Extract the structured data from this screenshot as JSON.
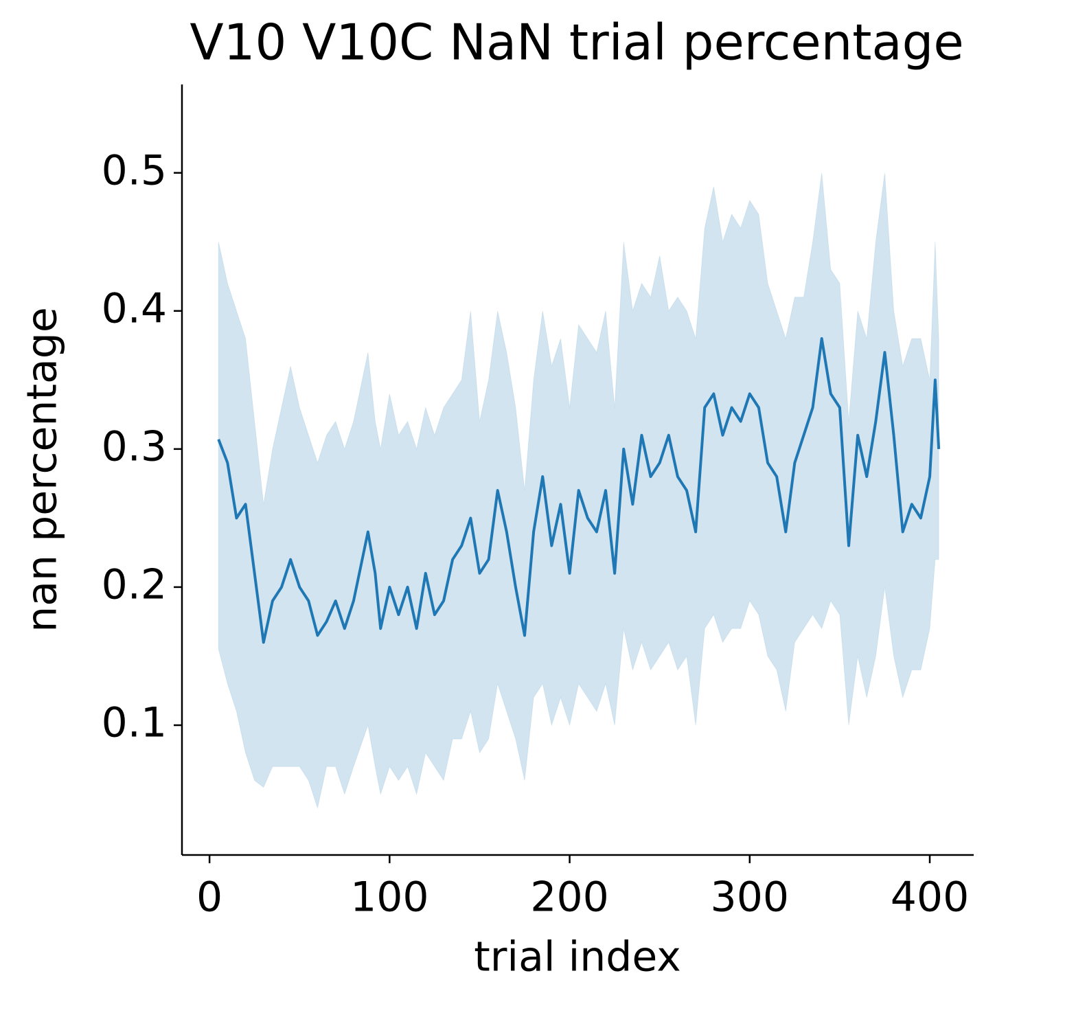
{
  "chart_data": {
    "type": "line",
    "title": "V10 V10C NaN trial percentage",
    "xlabel": "trial index",
    "ylabel": "nan percentage",
    "color": "#1f77b4",
    "xlim": [
      -15.3,
      424.4
    ],
    "ylim": [
      0.006,
      0.564
    ],
    "xticks": [
      0,
      100,
      200,
      300,
      400
    ],
    "yticks": [
      0.1,
      0.2,
      0.3,
      0.4,
      0.5
    ],
    "x": [
      5,
      10,
      15,
      20,
      25,
      30,
      35,
      40,
      45,
      50,
      55,
      60,
      65,
      70,
      75,
      80,
      88,
      92,
      95,
      100,
      105,
      110,
      115,
      120,
      125,
      130,
      135,
      140,
      145,
      150,
      155,
      160,
      165,
      170,
      175,
      180,
      185,
      190,
      195,
      200,
      205,
      210,
      215,
      220,
      225,
      230,
      235,
      240,
      245,
      250,
      255,
      260,
      265,
      270,
      275,
      280,
      285,
      290,
      295,
      300,
      305,
      310,
      315,
      320,
      325,
      330,
      335,
      340,
      345,
      350,
      355,
      360,
      365,
      370,
      375,
      380,
      385,
      390,
      395,
      400,
      403,
      405
    ],
    "values": [
      0.307,
      0.29,
      0.25,
      0.26,
      0.21,
      0.16,
      0.19,
      0.2,
      0.22,
      0.2,
      0.19,
      0.165,
      0.175,
      0.19,
      0.17,
      0.19,
      0.24,
      0.21,
      0.17,
      0.2,
      0.18,
      0.2,
      0.17,
      0.21,
      0.18,
      0.19,
      0.22,
      0.23,
      0.25,
      0.21,
      0.22,
      0.27,
      0.24,
      0.2,
      0.165,
      0.24,
      0.28,
      0.23,
      0.26,
      0.21,
      0.27,
      0.25,
      0.24,
      0.27,
      0.21,
      0.3,
      0.26,
      0.31,
      0.28,
      0.29,
      0.31,
      0.28,
      0.27,
      0.24,
      0.33,
      0.34,
      0.31,
      0.33,
      0.32,
      0.34,
      0.33,
      0.29,
      0.28,
      0.24,
      0.29,
      0.31,
      0.33,
      0.38,
      0.34,
      0.33,
      0.23,
      0.31,
      0.28,
      0.32,
      0.37,
      0.31,
      0.24,
      0.26,
      0.25,
      0.28,
      0.35,
      0.3
    ],
    "ci_upper": [
      0.45,
      0.42,
      0.4,
      0.38,
      0.32,
      0.26,
      0.3,
      0.33,
      0.36,
      0.33,
      0.31,
      0.29,
      0.31,
      0.32,
      0.3,
      0.32,
      0.37,
      0.32,
      0.3,
      0.34,
      0.31,
      0.32,
      0.3,
      0.33,
      0.31,
      0.33,
      0.34,
      0.35,
      0.4,
      0.32,
      0.35,
      0.4,
      0.37,
      0.33,
      0.27,
      0.35,
      0.4,
      0.36,
      0.38,
      0.33,
      0.39,
      0.38,
      0.37,
      0.4,
      0.33,
      0.45,
      0.4,
      0.42,
      0.41,
      0.44,
      0.4,
      0.41,
      0.4,
      0.38,
      0.46,
      0.49,
      0.45,
      0.47,
      0.46,
      0.48,
      0.47,
      0.42,
      0.4,
      0.38,
      0.41,
      0.41,
      0.45,
      0.5,
      0.43,
      0.42,
      0.32,
      0.4,
      0.38,
      0.45,
      0.5,
      0.4,
      0.36,
      0.38,
      0.38,
      0.35,
      0.45,
      0.38
    ],
    "ci_lower": [
      0.155,
      0.13,
      0.11,
      0.08,
      0.06,
      0.055,
      0.07,
      0.07,
      0.07,
      0.07,
      0.06,
      0.04,
      0.07,
      0.07,
      0.05,
      0.07,
      0.1,
      0.07,
      0.05,
      0.07,
      0.06,
      0.07,
      0.05,
      0.08,
      0.07,
      0.06,
      0.09,
      0.09,
      0.11,
      0.08,
      0.09,
      0.13,
      0.11,
      0.09,
      0.06,
      0.12,
      0.13,
      0.1,
      0.12,
      0.1,
      0.13,
      0.12,
      0.11,
      0.13,
      0.1,
      0.17,
      0.14,
      0.16,
      0.14,
      0.15,
      0.16,
      0.14,
      0.15,
      0.1,
      0.17,
      0.18,
      0.16,
      0.17,
      0.17,
      0.19,
      0.18,
      0.15,
      0.14,
      0.11,
      0.16,
      0.17,
      0.18,
      0.17,
      0.19,
      0.18,
      0.1,
      0.15,
      0.12,
      0.15,
      0.2,
      0.15,
      0.12,
      0.14,
      0.14,
      0.17,
      0.22,
      0.22
    ]
  }
}
